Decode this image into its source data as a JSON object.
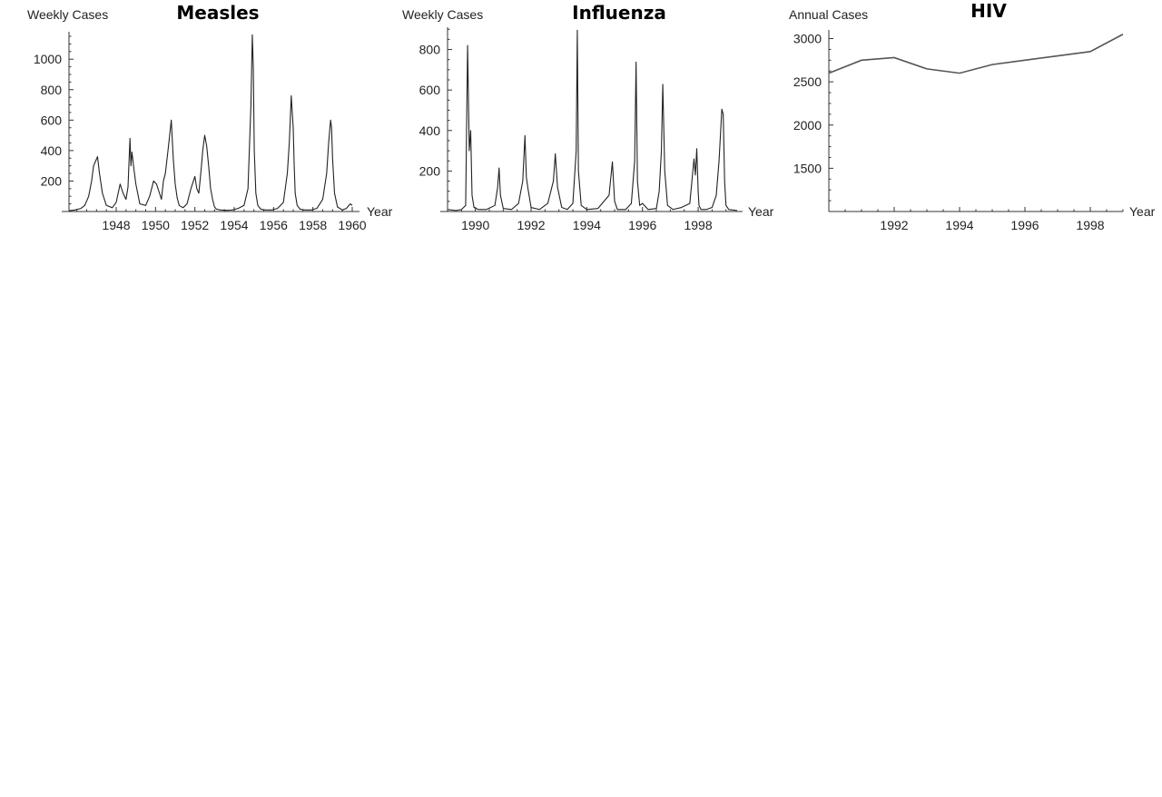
{
  "chart_data": [
    {
      "type": "line",
      "title": "Measles",
      "ylabel": "Weekly Cases",
      "xlabel": "Year",
      "xlim": [
        1945.6,
        1960.0
      ],
      "ylim": [
        0,
        1180
      ],
      "xticks": [
        1948,
        1950,
        1952,
        1954,
        1956,
        1958,
        1960
      ],
      "xtick_labels": [
        "1948",
        "1950",
        "1952",
        "1954",
        "1956",
        "1958",
        "1960"
      ],
      "yticks": [
        200,
        400,
        600,
        800,
        1000
      ],
      "ytick_labels": [
        "200",
        "400",
        "600",
        "800",
        "1000"
      ],
      "grid": false,
      "series": [
        {
          "x": [
            1945.6,
            1945.9,
            1946.2,
            1946.4,
            1946.6,
            1946.75,
            1946.85,
            1946.95,
            1947.05,
            1947.15,
            1947.3,
            1947.5,
            1947.8,
            1948.0,
            1948.2,
            1948.35,
            1948.5,
            1948.6,
            1948.7,
            1948.75,
            1948.8,
            1948.9,
            1949.0,
            1949.2,
            1949.5,
            1949.7,
            1949.9,
            1950.05,
            1950.2,
            1950.3,
            1950.4,
            1950.5,
            1950.65,
            1950.8,
            1950.9,
            1951.0,
            1951.1,
            1951.2,
            1951.4,
            1951.6,
            1951.8,
            1952.0,
            1952.1,
            1952.2,
            1952.3,
            1952.4,
            1952.5,
            1952.6,
            1952.7,
            1952.8,
            1952.9,
            1953.0,
            1953.1,
            1953.3,
            1953.6,
            1953.9,
            1954.2,
            1954.5,
            1954.7,
            1954.85,
            1954.92,
            1954.97,
            1955.02,
            1955.1,
            1955.2,
            1955.35,
            1955.6,
            1955.9,
            1956.2,
            1956.5,
            1956.7,
            1956.8,
            1956.9,
            1956.95,
            1957.0,
            1957.05,
            1957.1,
            1957.2,
            1957.35,
            1957.6,
            1957.9,
            1958.2,
            1958.5,
            1958.7,
            1958.8,
            1958.9,
            1958.95,
            1959.0,
            1959.1,
            1959.25,
            1959.5,
            1959.7,
            1959.9,
            1960.0
          ],
          "y": [
            5,
            10,
            20,
            40,
            100,
            200,
            300,
            330,
            360,
            250,
            120,
            40,
            25,
            60,
            180,
            120,
            80,
            160,
            480,
            300,
            390,
            280,
            180,
            50,
            40,
            100,
            200,
            180,
            120,
            80,
            200,
            250,
            420,
            600,
            350,
            180,
            90,
            40,
            25,
            50,
            150,
            230,
            150,
            120,
            250,
            400,
            500,
            430,
            300,
            150,
            80,
            30,
            15,
            10,
            8,
            10,
            20,
            40,
            150,
            700,
            1160,
            950,
            400,
            120,
            40,
            15,
            10,
            10,
            20,
            60,
            250,
            450,
            760,
            650,
            550,
            300,
            120,
            40,
            15,
            10,
            10,
            20,
            80,
            250,
            450,
            600,
            550,
            350,
            120,
            30,
            10,
            20,
            50,
            40
          ]
        }
      ]
    },
    {
      "type": "line",
      "title": "Influenza",
      "ylabel": "Weekly Cases",
      "xlabel": "Year",
      "xlim": [
        1989.0,
        1999.4
      ],
      "ylim": [
        0,
        910
      ],
      "xticks": [
        1990,
        1992,
        1994,
        1996,
        1998
      ],
      "xtick_labels": [
        "1990",
        "1992",
        "1994",
        "1996",
        "1998"
      ],
      "yticks": [
        200,
        400,
        600,
        800
      ],
      "yticks_labels": [
        "200",
        "400",
        "600",
        "800"
      ],
      "ytick_labels": [
        "200",
        "400",
        "600",
        "800"
      ],
      "grid": false,
      "series": [
        {
          "x": [
            1989.0,
            1989.3,
            1989.5,
            1989.65,
            1989.72,
            1989.78,
            1989.83,
            1989.88,
            1989.95,
            1990.1,
            1990.4,
            1990.7,
            1990.8,
            1990.85,
            1990.9,
            1991.0,
            1991.3,
            1991.55,
            1991.7,
            1991.78,
            1991.83,
            1991.88,
            1992.0,
            1992.3,
            1992.6,
            1992.8,
            1992.87,
            1992.95,
            1993.1,
            1993.3,
            1993.5,
            1993.62,
            1993.66,
            1993.7,
            1993.8,
            1994.0,
            1994.4,
            1994.8,
            1994.92,
            1995.0,
            1995.1,
            1995.4,
            1995.6,
            1995.72,
            1995.77,
            1995.82,
            1995.9,
            1996.0,
            1996.2,
            1996.5,
            1996.6,
            1996.68,
            1996.73,
            1996.8,
            1996.9,
            1997.1,
            1997.4,
            1997.7,
            1997.85,
            1997.9,
            1997.95,
            1998.0,
            1998.03,
            1998.1,
            1998.3,
            1998.5,
            1998.65,
            1998.75,
            1998.85,
            1998.9,
            1998.95,
            1999.0,
            1999.1,
            1999.4
          ],
          "y": [
            10,
            5,
            10,
            30,
            820,
            300,
            400,
            80,
            20,
            10,
            10,
            30,
            120,
            215,
            80,
            15,
            10,
            40,
            150,
            375,
            170,
            120,
            20,
            10,
            40,
            150,
            285,
            120,
            20,
            10,
            40,
            300,
            895,
            200,
            30,
            10,
            15,
            80,
            245,
            50,
            10,
            10,
            40,
            250,
            738,
            150,
            30,
            40,
            10,
            15,
            100,
            300,
            628,
            200,
            30,
            10,
            20,
            40,
            260,
            180,
            310,
            100,
            30,
            10,
            10,
            20,
            80,
            250,
            505,
            480,
            150,
            30,
            10,
            5
          ]
        }
      ]
    },
    {
      "type": "line",
      "title": "HIV",
      "ylabel": "Annual Cases",
      "xlabel": "Year",
      "xlim": [
        1990.0,
        1999.0
      ],
      "ylim": [
        1000,
        3100
      ],
      "xticks": [
        1992,
        1994,
        1996,
        1998
      ],
      "xtick_labels": [
        "1992",
        "1994",
        "1996",
        "1998"
      ],
      "yticks": [
        1500,
        2000,
        2500,
        3000
      ],
      "ytick_labels": [
        "1500",
        "2000",
        "2500",
        "3000"
      ],
      "grid": false,
      "series": [
        {
          "x": [
            1990,
            1991,
            1992,
            1993,
            1994,
            1995,
            1996,
            1997,
            1998,
            1999
          ],
          "y": [
            2600,
            2750,
            2780,
            2650,
            2600,
            2700,
            2750,
            2800,
            2850,
            3050
          ]
        }
      ]
    }
  ]
}
